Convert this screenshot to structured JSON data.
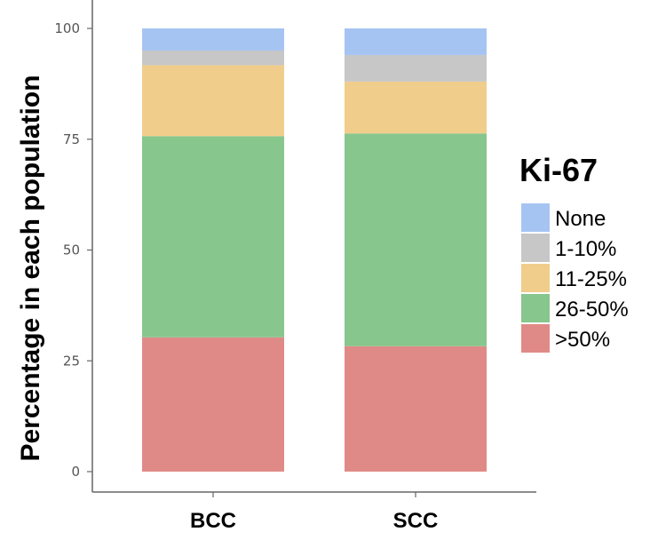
{
  "chart_data": {
    "type": "bar",
    "stacked": true,
    "categories": [
      "BCC",
      "SCC"
    ],
    "series": [
      {
        "name": ">50%",
        "color": "#E08A87",
        "values": [
          30.3,
          28.3
        ]
      },
      {
        "name": "26-50%",
        "color": "#87C68C",
        "values": [
          45.4,
          48.0
        ]
      },
      {
        "name": "11-25%",
        "color": "#F1CD8C",
        "values": [
          16.0,
          11.7
        ]
      },
      {
        "name": "1-10%",
        "color": "#C7C7C7",
        "values": [
          3.3,
          6.0
        ]
      },
      {
        "name": "None",
        "color": "#A6C4F2",
        "values": [
          5.0,
          6.0
        ]
      }
    ],
    "ylabel": "Percentage in each population",
    "ylim": [
      0,
      100
    ],
    "yticks": [
      "0",
      "25",
      "50",
      "75",
      "100"
    ],
    "legend": {
      "title": "Ki-67",
      "placement": "right",
      "items": [
        "None",
        "1-10%",
        "11-25%",
        "26-50%",
        ">50%"
      ]
    },
    "grid": false
  }
}
